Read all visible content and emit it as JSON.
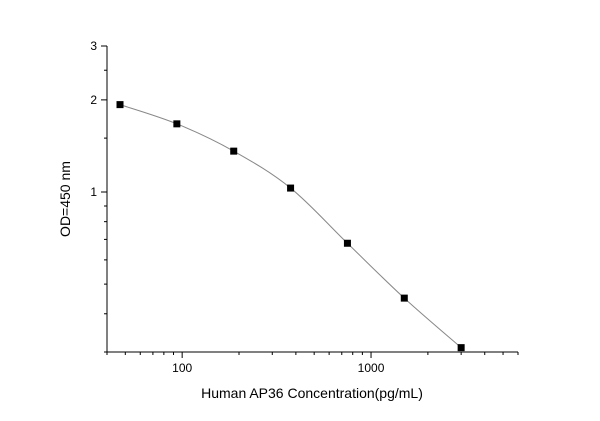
{
  "chart_data": {
    "type": "scatter",
    "xlabel": "Human AP36  Concentration(pg/mL)",
    "ylabel": "OD=450 nm",
    "x_scale": "log",
    "y_scale": "log",
    "xlim": [
      40,
      6000
    ],
    "ylim": [
      0.3,
      3
    ],
    "x_ticks": [
      100,
      1000
    ],
    "x_tick_labels": [
      "100",
      "1000"
    ],
    "y_ticks": [
      1,
      2,
      3
    ],
    "y_tick_labels": [
      "1",
      "2",
      "3"
    ],
    "grid": false,
    "series": [
      {
        "x": [
          46.875,
          93.75,
          187.5,
          375,
          750,
          1500,
          3000
        ],
        "y": [
          1.93,
          1.67,
          1.36,
          1.03,
          0.68,
          0.45,
          0.31
        ],
        "marker": "square",
        "line": "smooth",
        "color": "#000000",
        "line_color": "#888888"
      }
    ]
  }
}
